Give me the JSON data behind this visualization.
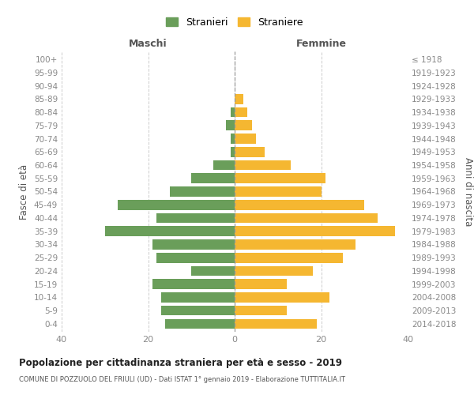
{
  "age_groups": [
    "100+",
    "95-99",
    "90-94",
    "85-89",
    "80-84",
    "75-79",
    "70-74",
    "65-69",
    "60-64",
    "55-59",
    "50-54",
    "45-49",
    "40-44",
    "35-39",
    "30-34",
    "25-29",
    "20-24",
    "15-19",
    "10-14",
    "5-9",
    "0-4"
  ],
  "birth_years": [
    "≤ 1918",
    "1919-1923",
    "1924-1928",
    "1929-1933",
    "1934-1938",
    "1939-1943",
    "1944-1948",
    "1949-1953",
    "1954-1958",
    "1959-1963",
    "1964-1968",
    "1969-1973",
    "1974-1978",
    "1979-1983",
    "1984-1988",
    "1989-1993",
    "1994-1998",
    "1999-2003",
    "2004-2008",
    "2009-2013",
    "2014-2018"
  ],
  "maschi": [
    0,
    0,
    0,
    0,
    1,
    2,
    1,
    1,
    5,
    10,
    15,
    27,
    18,
    30,
    19,
    18,
    10,
    19,
    17,
    17,
    16
  ],
  "femmine": [
    0,
    0,
    0,
    2,
    3,
    4,
    5,
    7,
    13,
    21,
    20,
    30,
    33,
    37,
    28,
    25,
    18,
    12,
    22,
    12,
    19
  ],
  "maschi_color": "#6a9e5a",
  "femmine_color": "#f5b731",
  "background_color": "#ffffff",
  "grid_color": "#cccccc",
  "title": "Popolazione per cittadinanza straniera per età e sesso - 2019",
  "subtitle": "COMUNE DI POZZUOLO DEL FRIULI (UD) - Dati ISTAT 1° gennaio 2019 - Elaborazione TUTTITALIA.IT",
  "left_label": "Maschi",
  "right_label": "Femmine",
  "ylabel_left": "Fasce di età",
  "ylabel_right": "Anni di nascita",
  "legend_maschi": "Stranieri",
  "legend_femmine": "Straniere",
  "xlim": 40,
  "bar_height": 0.75
}
